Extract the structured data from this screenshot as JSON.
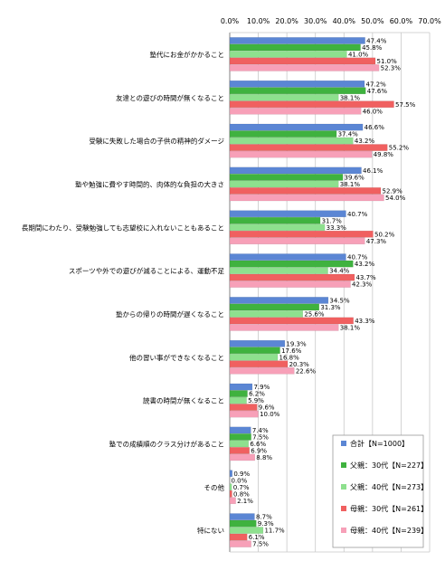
{
  "chart_data": {
    "type": "bar",
    "orientation": "horizontal",
    "xlim": [
      0,
      70
    ],
    "x_ticks": [
      "0.0%",
      "10.0%",
      "20.0%",
      "30.0%",
      "40.0%",
      "50.0%",
      "60.0%",
      "70.0%"
    ],
    "grid": true,
    "legend_position": "bottom-right",
    "categories": [
      "塾代にお金がかかること",
      "友達との遊びの時間が無くなること",
      "受験に失敗した場合の子供の精神的ダメージ",
      "塾や勉強に費やす時間的、肉体的な負担の大きさ",
      "長期間にわたり、受験勉強しても志望校に入れないこともあること",
      "スポーツや外での遊びが減ることによる、運動不足",
      "塾からの帰りの時間が遅くなること",
      "他の習い事ができなくなること",
      "読書の時間が無くなること",
      "塾での成績順のクラス分けがあること",
      "その他",
      "特にない"
    ],
    "series": [
      {
        "name": "合計【N=1000】",
        "color": "#5b86d4",
        "values": [
          47.4,
          47.2,
          46.6,
          46.1,
          40.7,
          40.7,
          34.5,
          19.3,
          7.9,
          7.4,
          0.9,
          8.7
        ]
      },
      {
        "name": "父親：30代【N=227】",
        "color": "#3fb23f",
        "values": [
          45.8,
          47.6,
          37.4,
          39.6,
          31.7,
          43.2,
          31.3,
          17.6,
          6.2,
          7.5,
          0.0,
          9.3
        ]
      },
      {
        "name": "父親：40代【N=273】",
        "color": "#8ee08e",
        "values": [
          41.0,
          38.1,
          43.2,
          38.1,
          33.3,
          34.4,
          25.6,
          16.8,
          5.9,
          6.6,
          0.7,
          11.7
        ]
      },
      {
        "name": "母親：30代【N=261】",
        "color": "#f06060",
        "values": [
          51.0,
          57.5,
          55.2,
          52.9,
          50.2,
          43.7,
          43.3,
          20.3,
          9.6,
          6.9,
          0.8,
          6.1
        ]
      },
      {
        "name": "母親：40代【N=239】",
        "color": "#f7a0b8",
        "values": [
          52.3,
          46.0,
          49.8,
          54.0,
          47.3,
          42.3,
          38.1,
          22.6,
          10.0,
          8.8,
          2.1,
          7.5
        ]
      }
    ]
  }
}
